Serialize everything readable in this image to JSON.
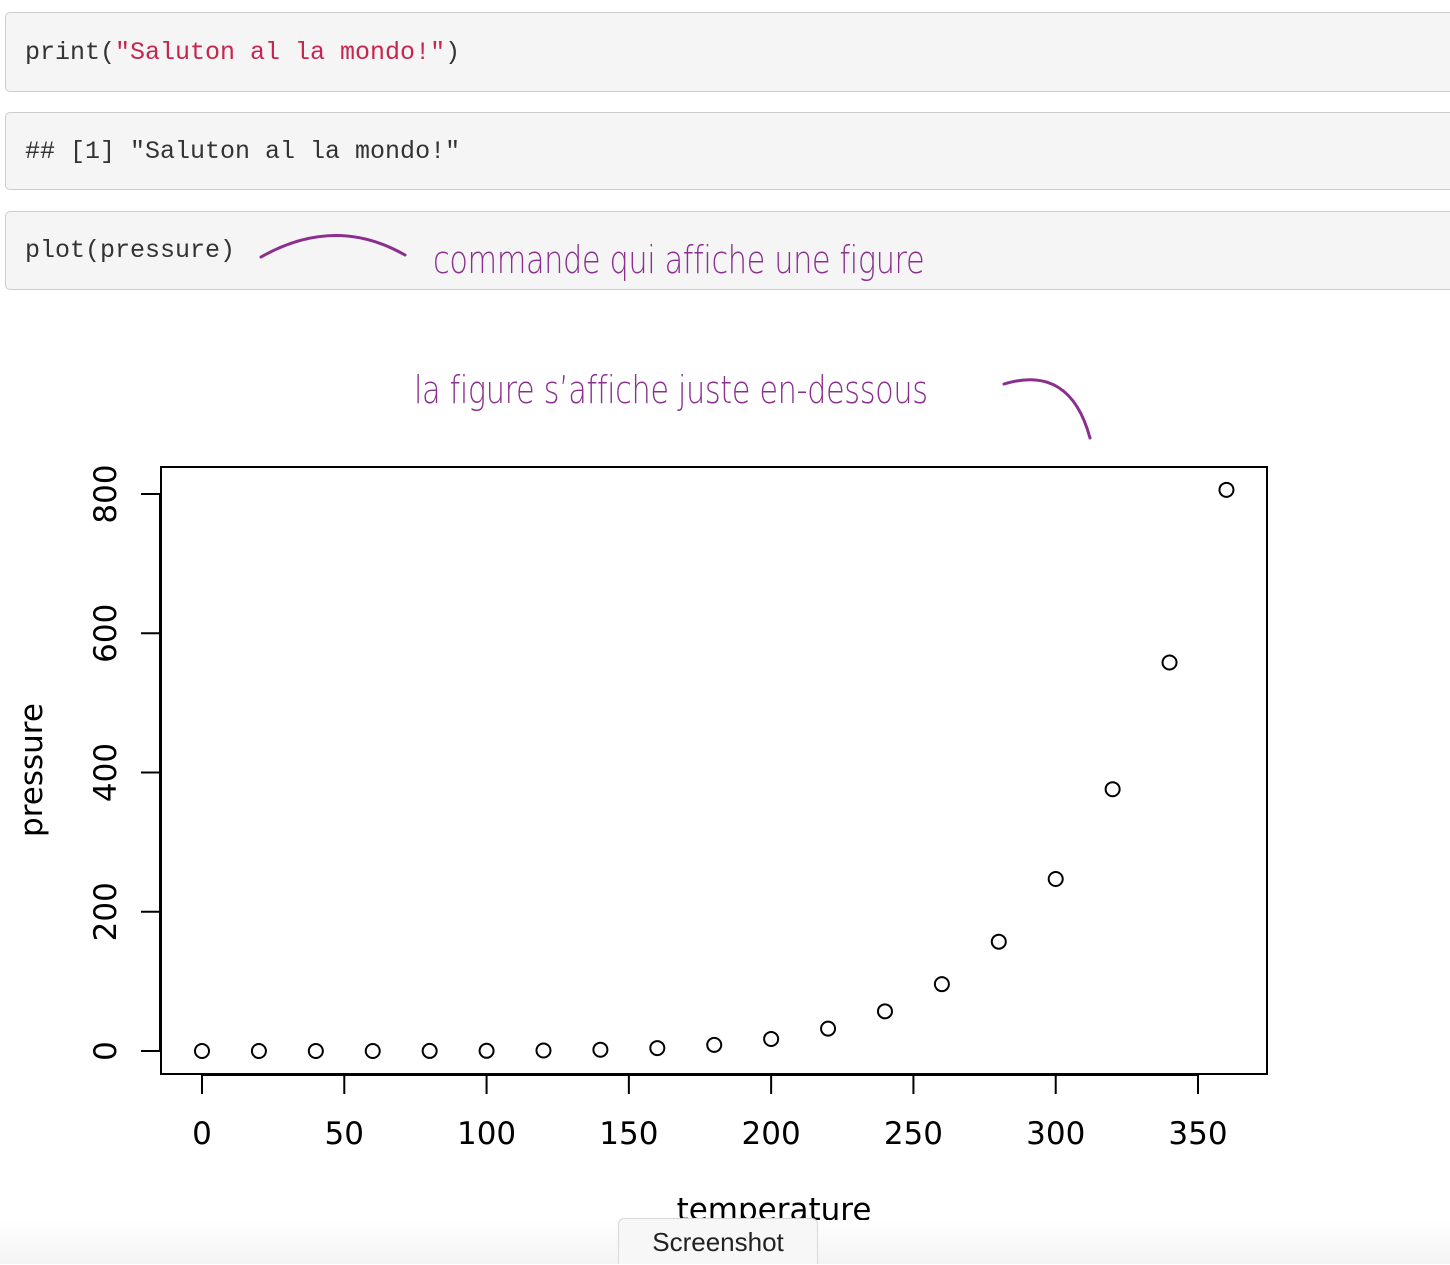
{
  "cells": [
    {
      "code_prefix": "print(",
      "code_string": "\"Saluton al la mondo!\"",
      "code_suffix": ")"
    },
    {
      "output": "## [1] \"Saluton al la mondo!\""
    },
    {
      "code": "plot(pressure)"
    }
  ],
  "annotations": {
    "command_note": "commande qui affiche une figure",
    "figure_note": "la figure s’affiche juste en-dessous",
    "color": "#8a2e8f"
  },
  "chart_data": {
    "type": "scatter",
    "xlabel": "temperature",
    "ylabel": "pressure",
    "xlim": [
      -15,
      375
    ],
    "ylim": [
      -32,
      840
    ],
    "xticks": [
      0,
      50,
      100,
      150,
      200,
      250,
      300,
      350
    ],
    "yticks": [
      0,
      200,
      400,
      600,
      800
    ],
    "grid": false,
    "marker": "open-circle",
    "x": [
      0,
      20,
      40,
      60,
      80,
      100,
      120,
      140,
      160,
      180,
      200,
      220,
      240,
      260,
      280,
      300,
      320,
      340,
      360
    ],
    "y": [
      0.0002,
      0.0012,
      0.006,
      0.03,
      0.09,
      0.27,
      0.75,
      1.85,
      4.2,
      8.8,
      17.3,
      32.1,
      57,
      96,
      157,
      247,
      376,
      558,
      806
    ]
  },
  "screenshot_tab": {
    "label": "Screenshot"
  }
}
